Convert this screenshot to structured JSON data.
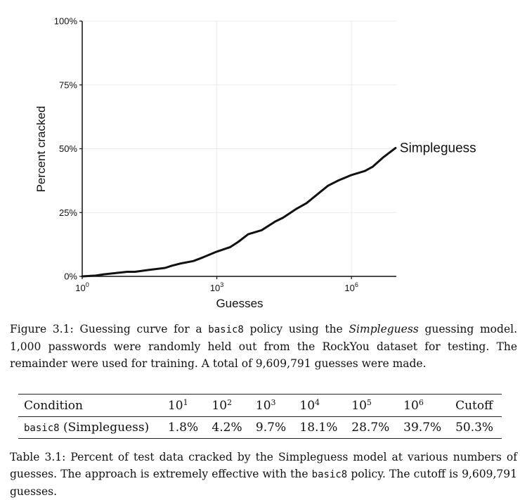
{
  "chart_data": {
    "type": "line",
    "title": "",
    "xlabel": "Guesses",
    "ylabel": "Percent cracked",
    "x_scale": "log10",
    "xlim": [
      1,
      10000000
    ],
    "ylim": [
      0,
      100
    ],
    "x_ticks": [
      {
        "value": 1,
        "base": "10",
        "exp": "0"
      },
      {
        "value": 1000,
        "base": "10",
        "exp": "3"
      },
      {
        "value": 1000000,
        "base": "10",
        "exp": "6"
      }
    ],
    "y_ticks": [
      {
        "value": 0,
        "label": "0%"
      },
      {
        "value": 25,
        "label": "25%"
      },
      {
        "value": 50,
        "label": "50%"
      },
      {
        "value": 75,
        "label": "75%"
      },
      {
        "value": 100,
        "label": "100%"
      }
    ],
    "grid": true,
    "series": [
      {
        "name": "Simpleguess",
        "x": [
          1,
          2,
          3,
          5,
          10,
          15,
          30,
          70,
          100,
          150,
          300,
          500,
          1000,
          2000,
          3000,
          5000,
          10000,
          20000,
          30000,
          60000,
          100000,
          200000,
          300000,
          500000,
          1000000,
          2000000,
          3000000,
          5000000,
          9609791
        ],
        "y": [
          0,
          0.3,
          0.8,
          1.2,
          1.8,
          1.8,
          2.5,
          3.3,
          4.2,
          5.0,
          6.0,
          7.5,
          9.7,
          11.5,
          13.5,
          16.5,
          18.1,
          21.5,
          23.0,
          26.5,
          28.7,
          33.0,
          35.5,
          37.5,
          39.7,
          41.3,
          43.0,
          46.5,
          50.3
        ]
      }
    ]
  },
  "figure_caption": {
    "prefix": "Figure 3.1: Guessing curve for a ",
    "policy": "basic8",
    "middle": " policy using the ",
    "model": "Simpleguess",
    "suffix": " guessing model. 1,000 passwords were randomly held out from the RockYou dataset for testing. The remainder were used for training. A total of 9,609,791 guesses were made."
  },
  "table": {
    "headers": [
      {
        "text": "Condition"
      },
      {
        "base": "10",
        "exp": "1"
      },
      {
        "base": "10",
        "exp": "2"
      },
      {
        "base": "10",
        "exp": "3"
      },
      {
        "base": "10",
        "exp": "4"
      },
      {
        "base": "10",
        "exp": "5"
      },
      {
        "base": "10",
        "exp": "6"
      },
      {
        "text": "Cutoff"
      }
    ],
    "row": {
      "policy": "basic8",
      "model": " (Simpleguess)",
      "values": [
        "1.8%",
        "4.2%",
        "9.7%",
        "18.1%",
        "28.7%",
        "39.7%",
        "50.3%"
      ]
    }
  },
  "table_caption": {
    "prefix": "Table 3.1: Percent of test data cracked by the Simpleguess model at various numbers of guesses. The approach is extremely effective with the ",
    "policy": "basic8",
    "suffix": " policy. The cutoff is 9,609,791 guesses."
  }
}
